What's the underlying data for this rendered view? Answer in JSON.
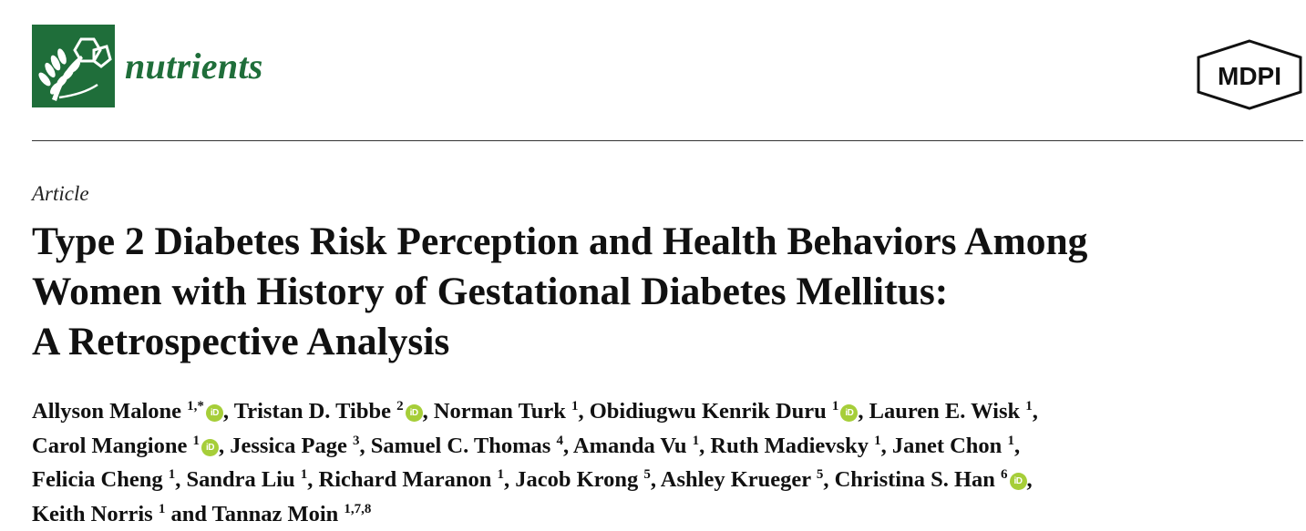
{
  "journal": {
    "name": "nutrients",
    "publisher": "MDPI"
  },
  "article_type": "Article",
  "title_lines": [
    "Type 2 Diabetes Risk Perception and Health Behaviors Among",
    "Women with History of Gestational Diabetes Mellitus:",
    "A Retrospective Analysis"
  ],
  "authors": [
    {
      "name": "Allyson Malone",
      "aff": "1,*",
      "orcid": true,
      "sep": ", "
    },
    {
      "name": "Tristan D. Tibbe",
      "aff": "2",
      "orcid": true,
      "sep": ", "
    },
    {
      "name": "Norman Turk",
      "aff": "1",
      "orcid": false,
      "sep": ", "
    },
    {
      "name": "Obidiugwu Kenrik Duru",
      "aff": "1",
      "orcid": true,
      "sep": ", "
    },
    {
      "name": "Lauren E. Wisk",
      "aff": "1",
      "orcid": false,
      "sep": ","
    },
    {
      "name": "Carol Mangione",
      "aff": "1",
      "orcid": true,
      "sep": ", "
    },
    {
      "name": "Jessica Page",
      "aff": "3",
      "orcid": false,
      "sep": ", "
    },
    {
      "name": "Samuel C. Thomas",
      "aff": "4",
      "orcid": false,
      "sep": ", "
    },
    {
      "name": "Amanda Vu",
      "aff": "1",
      "orcid": false,
      "sep": ", "
    },
    {
      "name": "Ruth Madievsky",
      "aff": "1",
      "orcid": false,
      "sep": ", "
    },
    {
      "name": "Janet Chon",
      "aff": "1",
      "orcid": false,
      "sep": ","
    },
    {
      "name": "Felicia Cheng",
      "aff": "1",
      "orcid": false,
      "sep": ", "
    },
    {
      "name": "Sandra Liu",
      "aff": "1",
      "orcid": false,
      "sep": ", "
    },
    {
      "name": "Richard Maranon",
      "aff": "1",
      "orcid": false,
      "sep": ", "
    },
    {
      "name": "Jacob Krong",
      "aff": "5",
      "orcid": false,
      "sep": ", "
    },
    {
      "name": "Ashley Krueger",
      "aff": "5",
      "orcid": false,
      "sep": ", "
    },
    {
      "name": "Christina S. Han",
      "aff": "6",
      "orcid": true,
      "sep": ","
    },
    {
      "name": "Keith Norris",
      "aff": "1",
      "orcid": false,
      "sep": " and "
    },
    {
      "name": "Tannaz Moin",
      "aff": "1,7,8",
      "orcid": false,
      "sep": ""
    }
  ],
  "author_lines": [
    [
      0,
      4
    ],
    [
      5,
      10
    ],
    [
      11,
      16
    ],
    [
      17,
      18
    ]
  ],
  "orcid_label": "iD",
  "colors": {
    "journal_green": "#1f6e3a",
    "orcid_green": "#a6ce39"
  }
}
